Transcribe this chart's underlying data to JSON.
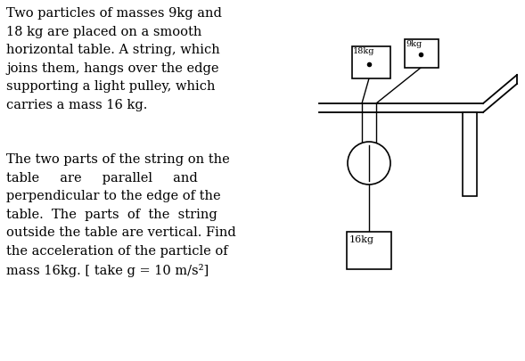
{
  "bg_color": "#ffffff",
  "text_color": "#000000",
  "paragraph1": "Two particles of masses 9kg and\n18 kg are placed on a smooth\nhorizontal table. A string, which\njoins them, hangs over the edge\nsupporting a light pulley, which\ncarries a mass 16 kg.",
  "paragraph2": "The two parts of the string on the\ntable     are     parallel     and\nperpendicular to the edge of the\ntable.  The  parts  of  the  string\noutside the table are vertical. Find\nthe acceleration of the particle of\nmass 16kg. [ take g = 10 m/s²]",
  "label_18kg": "18kg",
  "label_9kg": "9kg",
  "label_16kg": "16kg",
  "fig_width": 5.89,
  "fig_height": 4.05,
  "dpi": 100
}
